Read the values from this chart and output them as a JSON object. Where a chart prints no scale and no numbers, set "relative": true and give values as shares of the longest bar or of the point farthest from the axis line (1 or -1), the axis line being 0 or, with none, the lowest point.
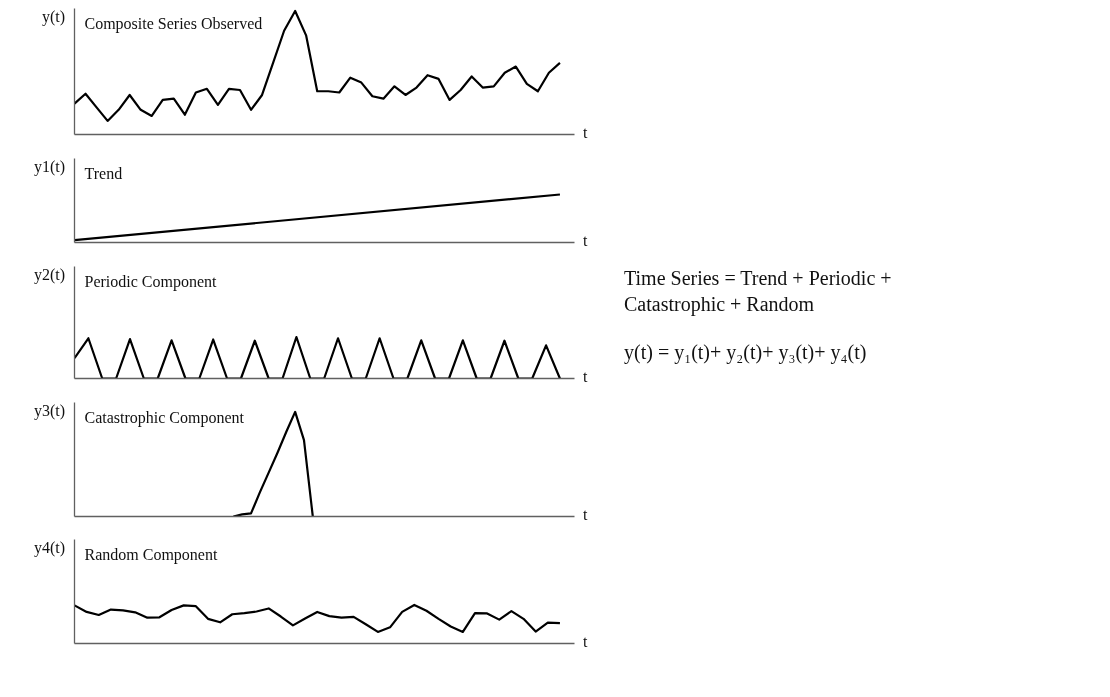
{
  "chart_data": [
    {
      "type": "line",
      "title": "Composite Series Observed",
      "ylabel": "y(t)",
      "xlabel": "t",
      "relative": true,
      "categories": [
        null,
        null,
        null,
        null,
        null,
        null,
        null,
        null,
        null,
        null,
        null,
        null,
        null,
        null,
        null,
        null,
        null,
        null,
        null,
        null,
        null,
        null,
        null,
        null,
        null,
        null,
        null,
        null,
        null,
        null,
        null,
        null,
        null,
        null,
        null,
        null,
        null,
        null,
        null,
        null,
        null,
        null,
        null,
        null,
        null
      ],
      "series": [
        {
          "color": "#000000",
          "values": [
            0.25,
            0.33,
            0.22,
            0.11,
            0.2,
            0.32,
            0.2,
            0.15,
            0.28,
            0.29,
            0.16,
            0.34,
            0.37,
            0.24,
            0.37,
            0.36,
            0.2,
            0.32,
            0.58,
            0.84,
            1,
            0.8,
            0.35,
            0.35,
            0.34,
            0.46,
            0.42,
            0.31,
            0.29,
            0.39,
            0.32,
            0.38,
            0.48,
            0.45,
            0.28,
            0.36,
            0.47,
            0.38,
            0.39,
            0.5,
            0.55,
            0.41,
            0.35,
            0.5,
            0.58
          ]
        }
      ]
    },
    {
      "type": "line",
      "title": "Trend",
      "ylabel": "y1(t)",
      "xlabel": "t",
      "relative": true,
      "categories": [
        null,
        null
      ],
      "series": [
        {
          "color": "#000000",
          "values": [
            0.05,
            1
          ]
        }
      ]
    },
    {
      "type": "line",
      "title": "Periodic Component",
      "ylabel": "y2(t)",
      "xlabel": "t",
      "relative": true,
      "categories": [
        null,
        null,
        null,
        null,
        null,
        null,
        null,
        null,
        null,
        null,
        null,
        null,
        null,
        null,
        null,
        null,
        null,
        null,
        null,
        null,
        null,
        null,
        null,
        null,
        null,
        null,
        null,
        null,
        null,
        null,
        null,
        null,
        null,
        null,
        null,
        null
      ],
      "series": [
        {
          "color": "#000000",
          "values": [
            0.49,
            0.97,
            0,
            0,
            0.95,
            0,
            0,
            0.92,
            0,
            0,
            0.94,
            0,
            0,
            0.91,
            0,
            0,
            1,
            0,
            0,
            0.97,
            0,
            0,
            0.97,
            0,
            0,
            0.92,
            0,
            0,
            0.92,
            0,
            0,
            0.91,
            0,
            0,
            0.8,
            0
          ]
        }
      ]
    },
    {
      "type": "line",
      "title": "Catastrophic Component",
      "ylabel": "y3(t)",
      "xlabel": "t",
      "relative": true,
      "categories": [
        null,
        null,
        null,
        null,
        null,
        null,
        null,
        null,
        null,
        null,
        null,
        null,
        null,
        null,
        null,
        null,
        null,
        null,
        null,
        null,
        null,
        null,
        null,
        null,
        null,
        null,
        null,
        null,
        null,
        null,
        null,
        null,
        null,
        null,
        null,
        null,
        null,
        null,
        null,
        null,
        null,
        null,
        null,
        null,
        null,
        null,
        null,
        null,
        null,
        null,
        null,
        null,
        null,
        null,
        null,
        null
      ],
      "series": [
        {
          "color": "#000000",
          "values": [
            null,
            null,
            null,
            null,
            null,
            null,
            null,
            null,
            null,
            null,
            null,
            null,
            null,
            null,
            null,
            null,
            null,
            null,
            0,
            0.02,
            0.03,
            0.23,
            0.42,
            0.61,
            0.81,
            1,
            0.73,
            0,
            null,
            null,
            null,
            null,
            null,
            null,
            null,
            null,
            null,
            null,
            null,
            null,
            null,
            null,
            null,
            null,
            null,
            null,
            null,
            null,
            null,
            null,
            null,
            null,
            null,
            null,
            null,
            null
          ]
        }
      ]
    },
    {
      "type": "line",
      "title": "Random Component",
      "ylabel": "y4(t)",
      "xlabel": "t",
      "relative": true,
      "categories": [
        null,
        null,
        null,
        null,
        null,
        null,
        null,
        null,
        null,
        null,
        null,
        null,
        null,
        null,
        null,
        null,
        null,
        null,
        null,
        null,
        null,
        null,
        null,
        null,
        null,
        null,
        null,
        null,
        null,
        null,
        null,
        null,
        null,
        null,
        null,
        null,
        null,
        null,
        null,
        null,
        null
      ],
      "series": [
        {
          "color": "#000000",
          "values": [
            0.99,
            0.82,
            0.74,
            0.88,
            0.86,
            0.81,
            0.67,
            0.68,
            0.87,
            0.99,
            0.97,
            0.64,
            0.55,
            0.76,
            0.79,
            0.83,
            0.91,
            0.7,
            0.47,
            0.65,
            0.82,
            0.71,
            0.67,
            0.69,
            0.5,
            0.3,
            0.42,
            0.82,
            1,
            0.85,
            0.64,
            0.44,
            0.3,
            0.79,
            0.78,
            0.62,
            0.84,
            0.64,
            0.31,
            0.54,
            0.53
          ]
        }
      ]
    },
    {
      "type": "other",
      "annotations": [
        "Time Series = Trend + Periodic + Catastrophic + Random",
        "y(t) = y₁(t)+ y₂(t)+ y₃(t)+ y₄(t)"
      ]
    }
  ]
}
